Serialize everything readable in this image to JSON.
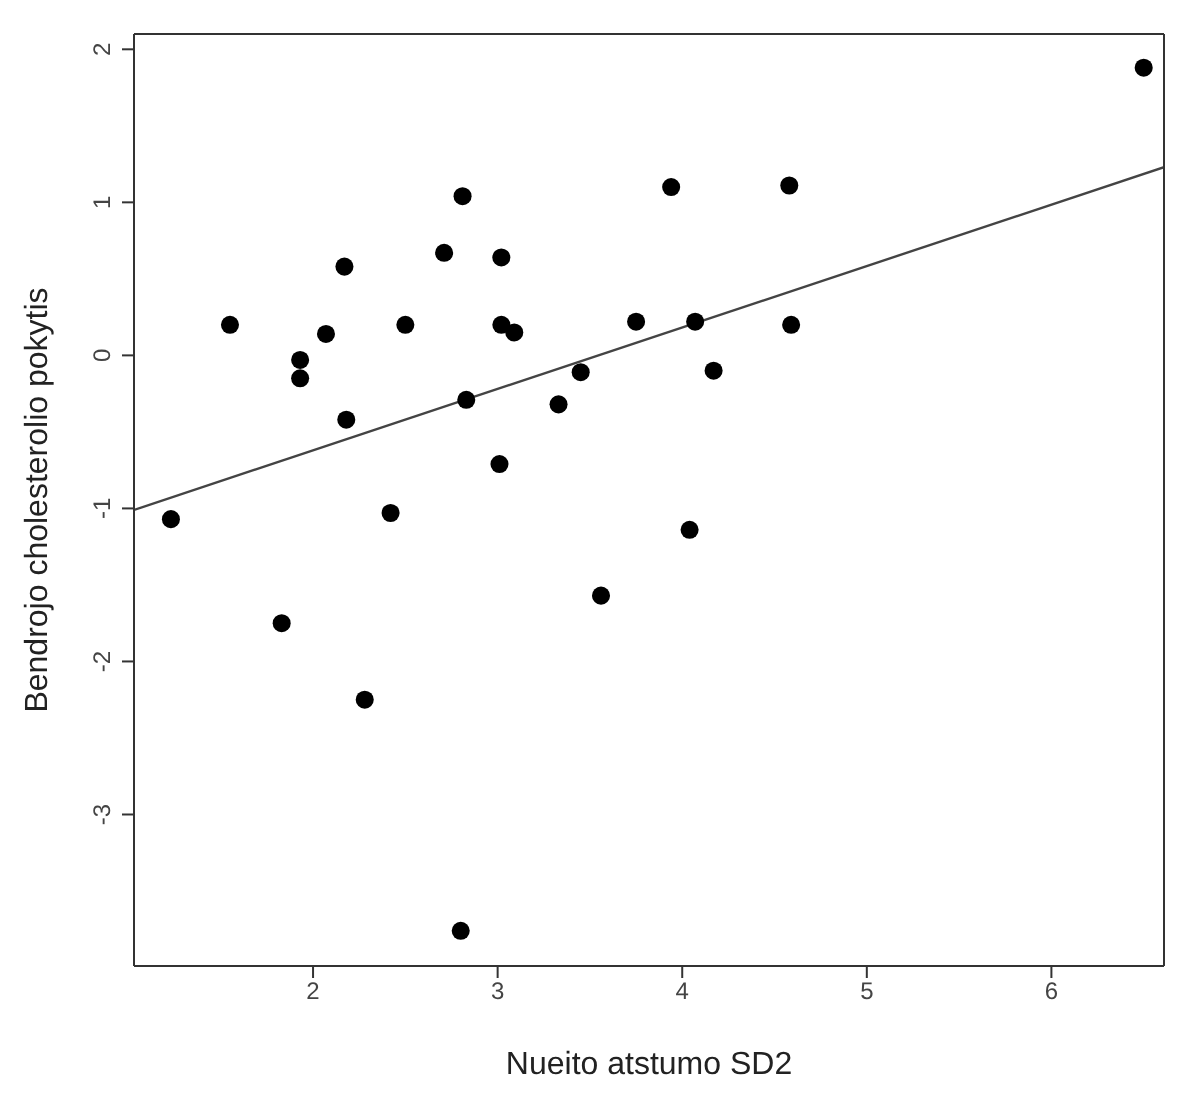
{
  "chart_data": {
    "type": "scatter",
    "xlabel": "Nueito atstumo SD2",
    "ylabel": "Bendrojo cholesterolio pokytis",
    "xlim": [
      1.03,
      6.61
    ],
    "ylim": [
      -3.99,
      2.1
    ],
    "xticks": [
      2,
      3,
      4,
      5,
      6
    ],
    "yticks": [
      -3,
      -2,
      -1,
      0,
      1,
      2
    ],
    "grid": false,
    "marker": "circle",
    "series": [
      {
        "color": "#000000",
        "x": [
          1.23,
          1.55,
          1.83,
          1.93,
          1.93,
          2.07,
          2.17,
          2.18,
          2.28,
          2.42,
          2.5,
          2.71,
          2.8,
          2.81,
          2.83,
          3.01,
          3.02,
          3.02,
          3.09,
          3.33,
          3.45,
          3.56,
          3.75,
          3.94,
          4.04,
          4.07,
          4.17,
          4.58,
          4.59,
          6.5
        ],
        "values": [
          -1.07,
          0.2,
          -1.75,
          -0.03,
          -0.15,
          0.14,
          0.58,
          -0.42,
          -2.25,
          -1.03,
          0.2,
          0.67,
          -3.76,
          1.04,
          -0.29,
          -0.71,
          0.64,
          0.2,
          0.15,
          -0.32,
          -0.11,
          -1.57,
          0.22,
          1.1,
          -1.14,
          0.22,
          -0.1,
          1.11,
          0.2,
          1.88
        ]
      },
      {
        "type": "line",
        "color": "#444444",
        "marker": "none",
        "x": [
          1.03,
          6.61
        ],
        "values": [
          -1.01,
          1.23
        ]
      }
    ]
  }
}
